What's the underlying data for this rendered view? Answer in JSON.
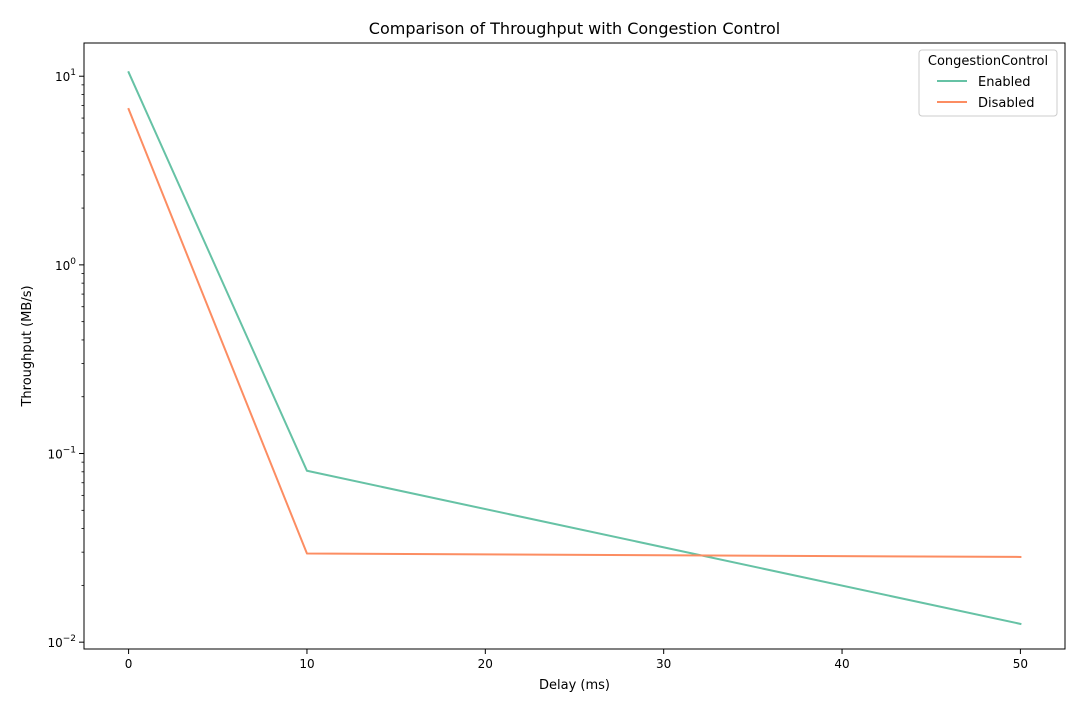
{
  "chart_data": {
    "type": "line",
    "title": "Comparison of Throughput with Congestion Control",
    "xlabel": "Delay (ms)",
    "ylabel": "Throughput (MB/s)",
    "x": [
      0,
      10,
      50
    ],
    "xlim": [
      -2.5,
      52.5
    ],
    "x_ticks": [
      0,
      10,
      20,
      30,
      40,
      50
    ],
    "x_tick_labels": [
      "0",
      "10",
      "20",
      "30",
      "40",
      "50"
    ],
    "y_scale": "log",
    "ylim": [
      0.0092,
      15
    ],
    "y_ticks": [
      0.01,
      0.1,
      1,
      10
    ],
    "y_tick_labels": [
      {
        "base": "10",
        "exp": "−2"
      },
      {
        "base": "10",
        "exp": "−1"
      },
      {
        "base": "10",
        "exp": "0"
      },
      {
        "base": "10",
        "exp": "1"
      }
    ],
    "grid": false,
    "legend": {
      "title": "CongestionControl",
      "placement": "top-right"
    },
    "series": [
      {
        "name": "Enabled",
        "color": "#66c2a5",
        "values": [
          10.5,
          0.081,
          0.0125
        ]
      },
      {
        "name": "Disabled",
        "color": "#fc8d62",
        "values": [
          6.7,
          0.0295,
          0.0283
        ]
      }
    ]
  }
}
